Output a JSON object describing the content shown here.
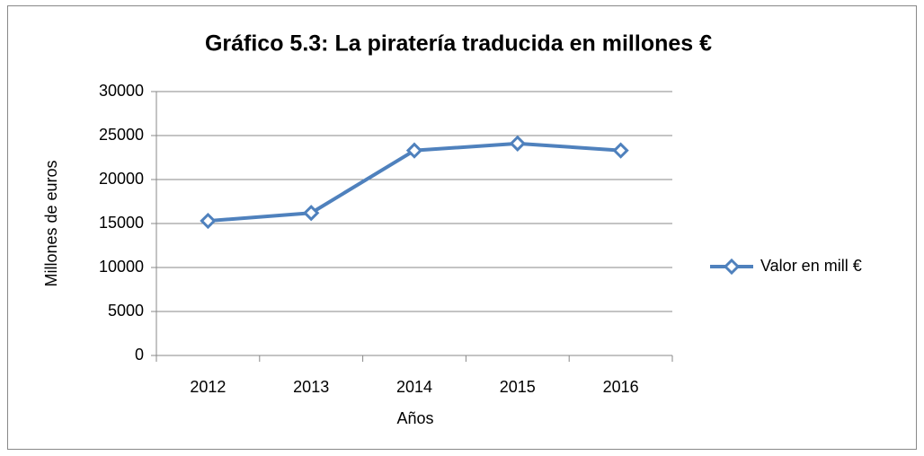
{
  "chart_data": {
    "type": "line",
    "title": "Gráfico 5.3: La piratería traducida en millones €",
    "x_label": "Años",
    "y_label": "Millones de euros",
    "categories": [
      "2012",
      "2013",
      "2014",
      "2015",
      "2016"
    ],
    "series": [
      {
        "name": "Valor en mill €",
        "color": "#4f81bd",
        "values": [
          15300,
          16200,
          23300,
          24100,
          23300
        ]
      }
    ],
    "ylim": [
      0,
      30000
    ],
    "yticks": [
      0,
      5000,
      10000,
      15000,
      20000,
      25000,
      30000
    ],
    "grid": true,
    "legend": "right"
  }
}
